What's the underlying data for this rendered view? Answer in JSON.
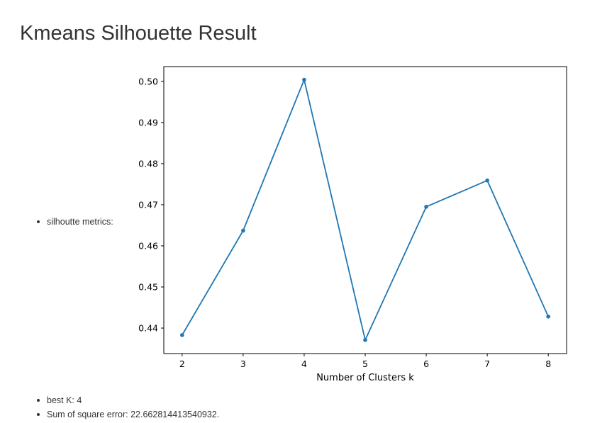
{
  "page": {
    "title": "Kmeans Silhouette Result"
  },
  "metrics_label": "silhoutte metrics:",
  "results": {
    "best_k": "best K: 4",
    "sse": "Sum of square error: 22.662814413540932."
  },
  "chart_data": {
    "type": "line",
    "title": "",
    "xlabel": "Number of Clusters k",
    "ylabel": "",
    "x": [
      2,
      3,
      4,
      5,
      6,
      7,
      8
    ],
    "series": [
      {
        "values": [
          0.4383,
          0.4637,
          0.5004,
          0.4371,
          0.4695,
          0.4759,
          0.4428
        ],
        "color": "#1f77b4"
      }
    ],
    "xticks": [
      "2",
      "3",
      "4",
      "5",
      "6",
      "7",
      "8"
    ],
    "yticks": [
      "0.44",
      "0.45",
      "0.46",
      "0.47",
      "0.48",
      "0.49",
      "0.50"
    ],
    "xlim": [
      1.7,
      8.3
    ],
    "ylim": [
      0.4338,
      0.5036
    ],
    "grid": false,
    "marker": "dot"
  }
}
